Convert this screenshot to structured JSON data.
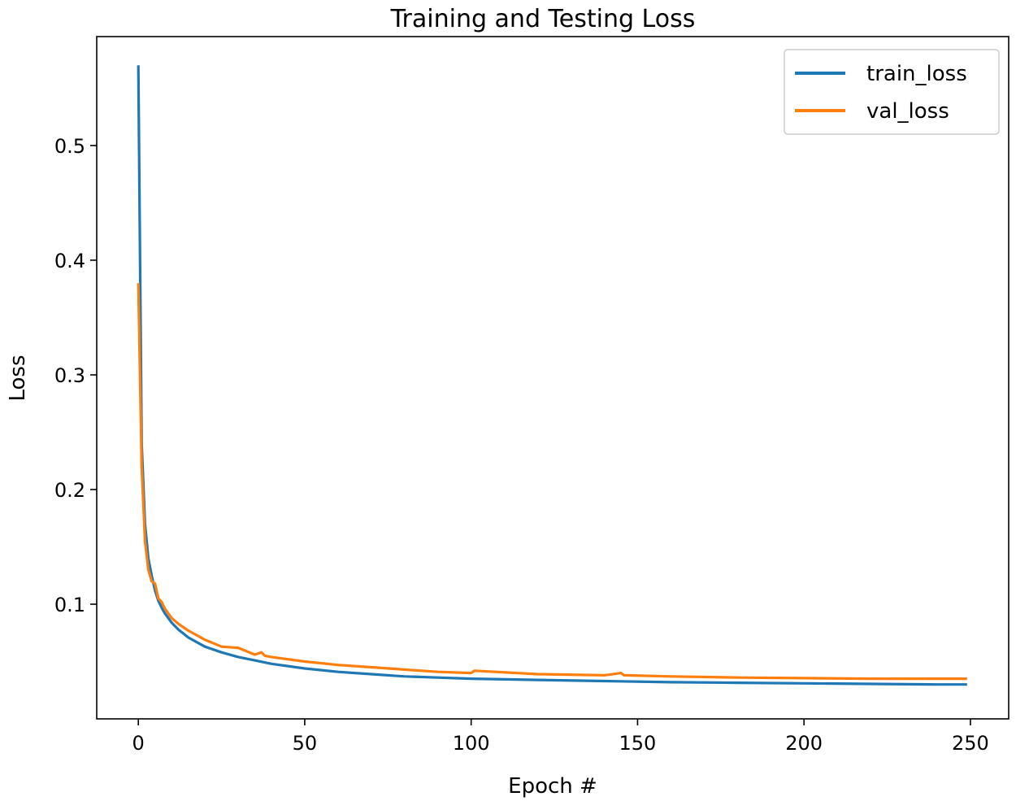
{
  "chart_data": {
    "type": "line",
    "title": "Training and Testing Loss",
    "xlabel": "Epoch #",
    "ylabel": "Loss",
    "xlim": [
      -12.5,
      261.5
    ],
    "ylim": [
      0.0,
      0.595
    ],
    "xticks": [
      0,
      50,
      100,
      150,
      200,
      250
    ],
    "yticks": [
      0.1,
      0.2,
      0.3,
      0.4,
      0.5
    ],
    "ytick_labels": [
      "0.1",
      "0.2",
      "0.3",
      "0.4",
      "0.5"
    ],
    "grid": false,
    "legend_position": "top-right",
    "series": [
      {
        "name": "train_loss",
        "color": "#1f77b4",
        "x": [
          0,
          1,
          2,
          3,
          4,
          5,
          6,
          7,
          8,
          10,
          12,
          15,
          20,
          25,
          30,
          35,
          40,
          50,
          60,
          70,
          80,
          90,
          100,
          120,
          140,
          160,
          180,
          200,
          220,
          240,
          249
        ],
        "values": [
          0.57,
          0.24,
          0.17,
          0.14,
          0.125,
          0.112,
          0.103,
          0.097,
          0.092,
          0.084,
          0.078,
          0.071,
          0.063,
          0.058,
          0.054,
          0.051,
          0.048,
          0.044,
          0.041,
          0.039,
          0.037,
          0.036,
          0.035,
          0.034,
          0.033,
          0.032,
          0.0315,
          0.031,
          0.0305,
          0.03,
          0.03
        ]
      },
      {
        "name": "val_loss",
        "color": "#ff7f0e",
        "x": [
          0,
          1,
          2,
          3,
          4,
          5,
          6,
          7,
          8,
          10,
          12,
          15,
          20,
          25,
          30,
          35,
          37,
          38,
          40,
          50,
          60,
          70,
          80,
          90,
          100,
          101,
          120,
          140,
          145,
          146,
          160,
          180,
          200,
          220,
          240,
          249
        ],
        "values": [
          0.38,
          0.22,
          0.155,
          0.13,
          0.12,
          0.118,
          0.105,
          0.102,
          0.096,
          0.088,
          0.083,
          0.077,
          0.069,
          0.063,
          0.062,
          0.056,
          0.058,
          0.055,
          0.054,
          0.05,
          0.047,
          0.045,
          0.043,
          0.041,
          0.04,
          0.042,
          0.039,
          0.038,
          0.04,
          0.038,
          0.037,
          0.036,
          0.0355,
          0.035,
          0.035,
          0.035
        ]
      }
    ]
  }
}
